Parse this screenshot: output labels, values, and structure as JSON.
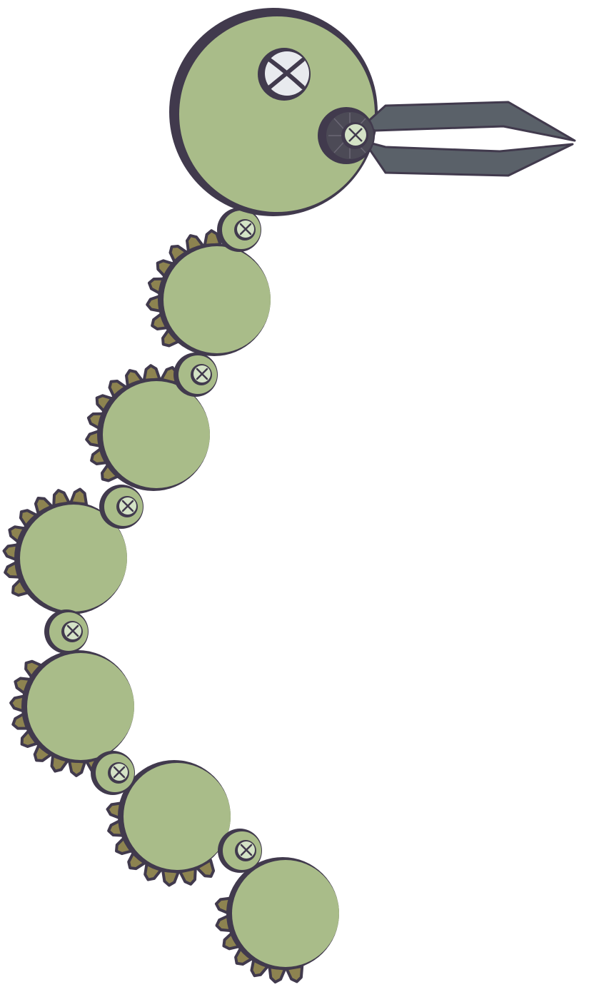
{
  "colors": {
    "body_fill": "#a9bc89",
    "outline": "#413a4d",
    "tooth_fill": "#8d8350",
    "screw_head_fill": "#e8eaee",
    "small_screw_fill": "#d4e3c6",
    "claw_fill": "#5a6169",
    "background": "#ffffff"
  },
  "icons": {
    "head": "robot-head-gear-icon",
    "eye": "screw-eye-icon",
    "beak": "claw-gripper-icon",
    "segment": "toothed-gear-segment-icon",
    "joint": "screw-joint-icon"
  },
  "segment_count": 6,
  "joint_count": 7
}
